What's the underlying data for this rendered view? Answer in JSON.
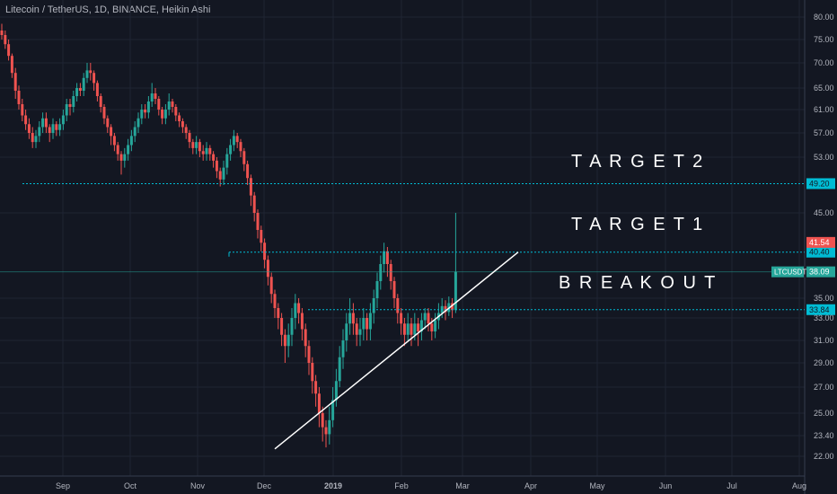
{
  "header": {
    "title": "Litecoin / TetherUS, 1D, BINANCE, Heikin Ashi"
  },
  "chart_data": {
    "type": "candlestick",
    "x_tick_labels": [
      "Sep",
      "Oct",
      "Nov",
      "Dec",
      "2019",
      "Feb",
      "Mar",
      "Apr",
      "May",
      "Jun",
      "Jul",
      "Aug"
    ],
    "y_tick_labels": [
      22.0,
      23.4,
      25.0,
      27.0,
      29.0,
      31.0,
      33.0,
      35.0,
      45.0,
      53.0,
      57.0,
      61.0,
      65.0,
      70.0,
      75.0,
      80.0
    ],
    "levels": [
      {
        "value": 49.2,
        "label": "49.20",
        "color": "#00bcd4"
      },
      {
        "value": 40.4,
        "label": "40.40",
        "color": "#00bcd4"
      },
      {
        "value": 33.84,
        "label": "33.84",
        "color": "#00bcd4"
      }
    ],
    "price_badges": [
      {
        "value": 41.54,
        "label": "41.54",
        "color": "#ef5350"
      },
      {
        "value": 38.09,
        "label": "38.09",
        "color": "#26a69a"
      }
    ],
    "symbol_badge": "LTCUSDT",
    "annotations": [
      "T A R G E T  2",
      "T A R G E T  1",
      "B R E A K O U T"
    ],
    "trendline": {
      "from": [
        "Dec",
        22.5
      ],
      "to": [
        "Mar",
        40.4
      ]
    },
    "candles": [
      {
        "o": 77.0,
        "c": 76.0,
        "h": 78.5,
        "l": 75.0
      },
      {
        "o": 76.0,
        "c": 74.0,
        "h": 77.0,
        "l": 73.0
      },
      {
        "o": 74.0,
        "c": 71.5,
        "h": 75.0,
        "l": 70.5
      },
      {
        "o": 71.5,
        "c": 68.0,
        "h": 72.0,
        "l": 67.0
      },
      {
        "o": 68.0,
        "c": 64.5,
        "h": 69.0,
        "l": 63.0
      },
      {
        "o": 64.5,
        "c": 62.0,
        "h": 65.5,
        "l": 61.0
      },
      {
        "o": 62.0,
        "c": 60.0,
        "h": 63.0,
        "l": 59.0
      },
      {
        "o": 60.0,
        "c": 58.5,
        "h": 61.0,
        "l": 57.5
      },
      {
        "o": 58.5,
        "c": 57.0,
        "h": 59.5,
        "l": 56.0
      },
      {
        "o": 57.0,
        "c": 55.5,
        "h": 58.0,
        "l": 54.5
      },
      {
        "o": 55.5,
        "c": 56.5,
        "h": 57.5,
        "l": 54.5
      },
      {
        "o": 56.5,
        "c": 58.0,
        "h": 59.0,
        "l": 55.5
      },
      {
        "o": 58.0,
        "c": 59.5,
        "h": 60.5,
        "l": 57.0
      },
      {
        "o": 59.5,
        "c": 58.0,
        "h": 60.5,
        "l": 57.0
      },
      {
        "o": 58.0,
        "c": 57.0,
        "h": 58.5,
        "l": 55.5
      },
      {
        "o": 57.0,
        "c": 58.5,
        "h": 59.5,
        "l": 56.0
      },
      {
        "o": 58.5,
        "c": 57.5,
        "h": 59.0,
        "l": 56.5
      },
      {
        "o": 57.5,
        "c": 58.5,
        "h": 59.5,
        "l": 56.5
      },
      {
        "o": 58.5,
        "c": 60.0,
        "h": 61.0,
        "l": 57.5
      },
      {
        "o": 60.0,
        "c": 62.0,
        "h": 63.0,
        "l": 59.0
      },
      {
        "o": 62.0,
        "c": 61.5,
        "h": 63.0,
        "l": 60.0
      },
      {
        "o": 61.5,
        "c": 63.5,
        "h": 64.5,
        "l": 60.5
      },
      {
        "o": 63.5,
        "c": 65.0,
        "h": 66.0,
        "l": 62.5
      },
      {
        "o": 65.0,
        "c": 64.5,
        "h": 66.0,
        "l": 63.5
      },
      {
        "o": 64.5,
        "c": 67.0,
        "h": 68.0,
        "l": 63.5
      },
      {
        "o": 67.0,
        "c": 68.5,
        "h": 70.0,
        "l": 66.0
      },
      {
        "o": 68.5,
        "c": 68.0,
        "h": 70.0,
        "l": 66.5
      },
      {
        "o": 68.0,
        "c": 66.0,
        "h": 68.5,
        "l": 64.5
      },
      {
        "o": 66.0,
        "c": 63.5,
        "h": 66.5,
        "l": 62.5
      },
      {
        "o": 63.5,
        "c": 61.5,
        "h": 64.0,
        "l": 60.5
      },
      {
        "o": 61.5,
        "c": 59.5,
        "h": 62.0,
        "l": 58.5
      },
      {
        "o": 59.5,
        "c": 58.0,
        "h": 60.0,
        "l": 57.0
      },
      {
        "o": 58.0,
        "c": 56.5,
        "h": 58.5,
        "l": 55.0
      },
      {
        "o": 56.5,
        "c": 55.0,
        "h": 57.0,
        "l": 54.0
      },
      {
        "o": 55.0,
        "c": 53.5,
        "h": 55.5,
        "l": 52.5
      },
      {
        "o": 53.5,
        "c": 52.5,
        "h": 54.0,
        "l": 50.5
      },
      {
        "o": 52.5,
        "c": 53.5,
        "h": 54.5,
        "l": 51.5
      },
      {
        "o": 53.5,
        "c": 55.0,
        "h": 56.0,
        "l": 52.5
      },
      {
        "o": 55.0,
        "c": 56.5,
        "h": 57.5,
        "l": 54.0
      },
      {
        "o": 56.5,
        "c": 58.0,
        "h": 59.0,
        "l": 55.5
      },
      {
        "o": 58.0,
        "c": 59.5,
        "h": 60.5,
        "l": 57.0
      },
      {
        "o": 59.5,
        "c": 61.0,
        "h": 62.0,
        "l": 58.5
      },
      {
        "o": 61.0,
        "c": 60.5,
        "h": 62.0,
        "l": 59.5
      },
      {
        "o": 60.5,
        "c": 62.5,
        "h": 63.5,
        "l": 59.5
      },
      {
        "o": 62.5,
        "c": 64.0,
        "h": 66.0,
        "l": 61.5
      },
      {
        "o": 64.0,
        "c": 63.0,
        "h": 65.0,
        "l": 62.0
      },
      {
        "o": 63.0,
        "c": 61.0,
        "h": 63.5,
        "l": 60.0
      },
      {
        "o": 61.0,
        "c": 59.5,
        "h": 61.5,
        "l": 58.5
      },
      {
        "o": 59.5,
        "c": 61.0,
        "h": 62.0,
        "l": 58.5
      },
      {
        "o": 61.0,
        "c": 62.5,
        "h": 64.0,
        "l": 60.0
      },
      {
        "o": 62.5,
        "c": 61.5,
        "h": 63.0,
        "l": 60.5
      },
      {
        "o": 61.5,
        "c": 60.0,
        "h": 62.0,
        "l": 59.0
      },
      {
        "o": 60.0,
        "c": 59.0,
        "h": 60.5,
        "l": 58.0
      },
      {
        "o": 59.0,
        "c": 58.0,
        "h": 59.5,
        "l": 57.0
      },
      {
        "o": 58.0,
        "c": 57.0,
        "h": 58.5,
        "l": 56.0
      },
      {
        "o": 57.0,
        "c": 55.5,
        "h": 57.5,
        "l": 54.5
      },
      {
        "o": 55.5,
        "c": 54.5,
        "h": 56.0,
        "l": 53.5
      },
      {
        "o": 54.5,
        "c": 55.5,
        "h": 56.5,
        "l": 53.5
      },
      {
        "o": 55.5,
        "c": 54.0,
        "h": 56.0,
        "l": 53.0
      },
      {
        "o": 54.0,
        "c": 53.5,
        "h": 55.0,
        "l": 52.5
      },
      {
        "o": 53.5,
        "c": 54.5,
        "h": 55.5,
        "l": 52.5
      },
      {
        "o": 54.5,
        "c": 53.5,
        "h": 55.0,
        "l": 52.5
      },
      {
        "o": 53.5,
        "c": 52.5,
        "h": 54.0,
        "l": 51.5
      },
      {
        "o": 52.5,
        "c": 51.0,
        "h": 53.0,
        "l": 50.0
      },
      {
        "o": 51.0,
        "c": 49.8,
        "h": 51.5,
        "l": 48.8
      },
      {
        "o": 49.8,
        "c": 51.5,
        "h": 52.5,
        "l": 49.0
      },
      {
        "o": 51.5,
        "c": 53.5,
        "h": 54.5,
        "l": 50.5
      },
      {
        "o": 53.5,
        "c": 55.0,
        "h": 56.0,
        "l": 52.5
      },
      {
        "o": 55.0,
        "c": 56.5,
        "h": 57.5,
        "l": 54.0
      },
      {
        "o": 56.5,
        "c": 55.5,
        "h": 57.0,
        "l": 54.5
      },
      {
        "o": 55.5,
        "c": 54.0,
        "h": 56.0,
        "l": 53.0
      },
      {
        "o": 54.0,
        "c": 52.0,
        "h": 54.5,
        "l": 51.0
      },
      {
        "o": 52.0,
        "c": 50.0,
        "h": 52.5,
        "l": 49.0
      },
      {
        "o": 50.0,
        "c": 47.5,
        "h": 50.5,
        "l": 46.0
      },
      {
        "o": 47.5,
        "c": 45.0,
        "h": 48.0,
        "l": 44.0
      },
      {
        "o": 45.0,
        "c": 43.0,
        "h": 45.5,
        "l": 42.0
      },
      {
        "o": 43.0,
        "c": 41.5,
        "h": 43.5,
        "l": 40.5
      },
      {
        "o": 41.5,
        "c": 39.5,
        "h": 42.0,
        "l": 38.5
      },
      {
        "o": 39.5,
        "c": 37.5,
        "h": 40.0,
        "l": 36.5
      },
      {
        "o": 37.5,
        "c": 35.5,
        "h": 38.0,
        "l": 34.5
      },
      {
        "o": 35.5,
        "c": 34.0,
        "h": 36.0,
        "l": 33.0
      },
      {
        "o": 34.0,
        "c": 33.0,
        "h": 34.5,
        "l": 32.0
      },
      {
        "o": 33.0,
        "c": 31.5,
        "h": 33.5,
        "l": 30.5
      },
      {
        "o": 31.5,
        "c": 30.5,
        "h": 32.0,
        "l": 29.0
      },
      {
        "o": 30.5,
        "c": 31.5,
        "h": 32.5,
        "l": 29.5
      },
      {
        "o": 31.5,
        "c": 33.0,
        "h": 34.0,
        "l": 30.5
      },
      {
        "o": 33.0,
        "c": 34.5,
        "h": 35.5,
        "l": 32.0
      },
      {
        "o": 34.5,
        "c": 33.5,
        "h": 35.0,
        "l": 32.5
      },
      {
        "o": 33.5,
        "c": 32.0,
        "h": 34.0,
        "l": 31.0
      },
      {
        "o": 32.0,
        "c": 30.5,
        "h": 32.5,
        "l": 29.5
      },
      {
        "o": 30.5,
        "c": 29.0,
        "h": 31.0,
        "l": 28.0
      },
      {
        "o": 29.0,
        "c": 27.5,
        "h": 29.5,
        "l": 26.5
      },
      {
        "o": 27.5,
        "c": 26.5,
        "h": 28.0,
        "l": 25.5
      },
      {
        "o": 26.5,
        "c": 25.0,
        "h": 27.0,
        "l": 24.0
      },
      {
        "o": 25.0,
        "c": 24.0,
        "h": 25.5,
        "l": 23.0
      },
      {
        "o": 24.0,
        "c": 23.5,
        "h": 24.5,
        "l": 22.6
      },
      {
        "o": 23.5,
        "c": 24.5,
        "h": 25.5,
        "l": 22.8
      },
      {
        "o": 24.5,
        "c": 26.0,
        "h": 27.0,
        "l": 24.0
      },
      {
        "o": 26.0,
        "c": 27.5,
        "h": 28.5,
        "l": 25.5
      },
      {
        "o": 27.5,
        "c": 29.5,
        "h": 30.5,
        "l": 27.0
      },
      {
        "o": 29.5,
        "c": 31.0,
        "h": 32.0,
        "l": 28.5
      },
      {
        "o": 31.0,
        "c": 32.5,
        "h": 33.5,
        "l": 30.0
      },
      {
        "o": 32.5,
        "c": 33.5,
        "h": 35.0,
        "l": 31.5
      },
      {
        "o": 33.5,
        "c": 32.5,
        "h": 34.5,
        "l": 31.5
      },
      {
        "o": 32.5,
        "c": 31.5,
        "h": 33.0,
        "l": 30.5
      },
      {
        "o": 31.5,
        "c": 32.0,
        "h": 33.0,
        "l": 30.5
      },
      {
        "o": 32.0,
        "c": 33.0,
        "h": 34.0,
        "l": 31.0
      },
      {
        "o": 33.0,
        "c": 32.0,
        "h": 33.5,
        "l": 31.0
      },
      {
        "o": 32.0,
        "c": 33.5,
        "h": 34.5,
        "l": 31.0
      },
      {
        "o": 33.5,
        "c": 35.0,
        "h": 36.0,
        "l": 32.5
      },
      {
        "o": 35.0,
        "c": 37.0,
        "h": 38.0,
        "l": 34.0
      },
      {
        "o": 37.0,
        "c": 39.0,
        "h": 40.0,
        "l": 36.0
      },
      {
        "o": 39.0,
        "c": 40.5,
        "h": 41.5,
        "l": 38.0
      },
      {
        "o": 40.5,
        "c": 39.0,
        "h": 41.0,
        "l": 37.5
      },
      {
        "o": 39.0,
        "c": 37.0,
        "h": 39.5,
        "l": 36.0
      },
      {
        "o": 37.0,
        "c": 35.0,
        "h": 37.5,
        "l": 34.0
      },
      {
        "o": 35.0,
        "c": 33.5,
        "h": 35.5,
        "l": 32.5
      },
      {
        "o": 33.5,
        "c": 32.5,
        "h": 34.0,
        "l": 31.5
      },
      {
        "o": 32.5,
        "c": 31.5,
        "h": 33.0,
        "l": 30.5
      },
      {
        "o": 31.5,
        "c": 32.5,
        "h": 33.5,
        "l": 31.0
      },
      {
        "o": 32.5,
        "c": 31.5,
        "h": 33.0,
        "l": 30.5
      },
      {
        "o": 31.5,
        "c": 32.5,
        "h": 33.5,
        "l": 31.0
      },
      {
        "o": 32.5,
        "c": 31.8,
        "h": 33.0,
        "l": 30.5
      },
      {
        "o": 31.8,
        "c": 32.8,
        "h": 33.5,
        "l": 31.0
      },
      {
        "o": 32.8,
        "c": 33.5,
        "h": 34.0,
        "l": 32.0
      },
      {
        "o": 33.5,
        "c": 32.5,
        "h": 34.0,
        "l": 31.8
      },
      {
        "o": 32.5,
        "c": 31.8,
        "h": 33.0,
        "l": 31.0
      },
      {
        "o": 31.8,
        "c": 32.8,
        "h": 33.5,
        "l": 31.2
      },
      {
        "o": 32.8,
        "c": 33.5,
        "h": 34.5,
        "l": 32.0
      },
      {
        "o": 33.5,
        "c": 34.2,
        "h": 35.0,
        "l": 33.0
      },
      {
        "o": 34.2,
        "c": 33.6,
        "h": 34.8,
        "l": 32.8
      },
      {
        "o": 33.6,
        "c": 34.5,
        "h": 35.2,
        "l": 33.2
      },
      {
        "o": 34.5,
        "c": 33.8,
        "h": 35.0,
        "l": 33.0
      },
      {
        "o": 33.8,
        "c": 38.09,
        "h": 45.0,
        "l": 33.5
      }
    ]
  }
}
